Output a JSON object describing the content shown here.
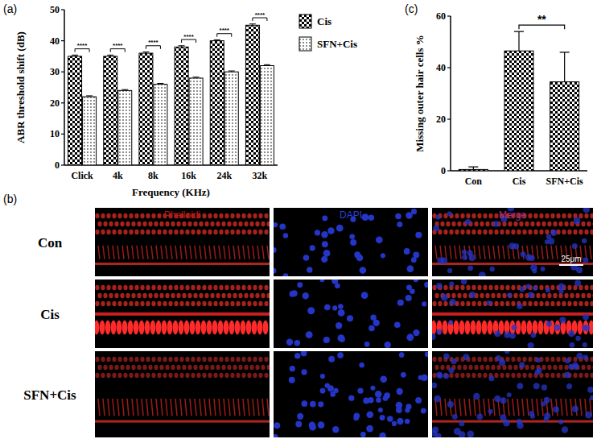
{
  "chart_data": [
    {
      "type": "bar",
      "title": "(a)",
      "x_label": "Frequency (KHz)",
      "y_label": "ABR threshold shift (dB)",
      "categories": [
        "Click",
        "4k",
        "8k",
        "16k",
        "24k",
        "32k"
      ],
      "series": [
        {
          "name": "Cis",
          "color": "#000000",
          "values": [
            35,
            35,
            36,
            38,
            40,
            45
          ],
          "errors": [
            0.4,
            0.4,
            0.4,
            0.4,
            0.3,
            0.4
          ]
        },
        {
          "name": "SFN+Cis",
          "color": "#000000",
          "values": [
            22,
            24,
            26,
            28,
            30,
            32
          ],
          "errors": [
            0.3,
            0.3,
            0.3,
            0.3,
            0.3,
            0.3
          ]
        }
      ],
      "ylim": [
        0,
        50
      ],
      "yticks": [
        0,
        10,
        20,
        30,
        40,
        50
      ],
      "annotations": [
        "****",
        "****",
        "****",
        "****",
        "****",
        "****"
      ],
      "legend": "right"
    },
    {
      "type": "bar",
      "title": "(c)",
      "y_label": "Missing outer hair cells %",
      "categories": [
        "Con",
        "Cis",
        "SFN+Cis"
      ],
      "values": [
        0.5,
        46.5,
        34.5
      ],
      "errors": [
        1,
        7.5,
        11.5
      ],
      "color": "#000000",
      "ylim": [
        0,
        60
      ],
      "yticks": [
        0,
        20,
        40,
        60
      ],
      "annotations": [
        "**"
      ]
    }
  ],
  "image_panel": {
    "label": "(b)",
    "columns": [
      "Phalloidi",
      "DAPI",
      "Merge"
    ],
    "rows": [
      "Con",
      "Cis",
      "SFN+Cis"
    ],
    "scale_bar": "25μm"
  }
}
